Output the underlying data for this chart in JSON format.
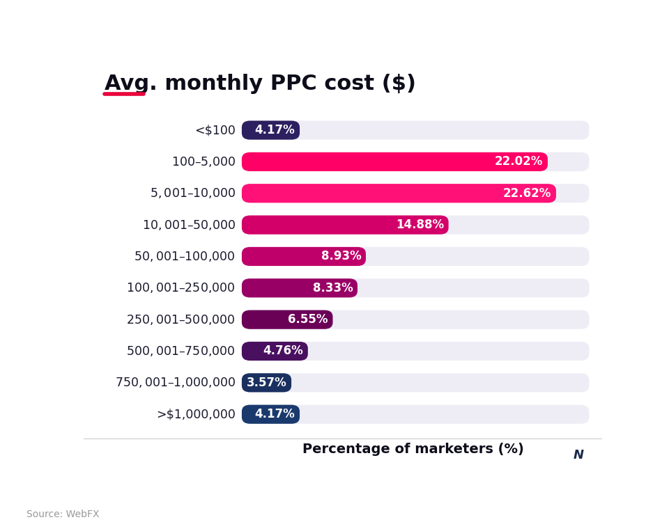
{
  "title": "Avg. monthly PPC cost ($)",
  "xlabel": "Percentage of marketers (%)",
  "source": "Source: WebFX",
  "categories": [
    "<$100",
    "$100–$5,000",
    "$5,001–$10,000",
    "$10,001–$50,000",
    "$50,001–$100,000",
    "$100,001–$250,000",
    "$250,001–$500,000",
    "$500,001–$750,000",
    "$750,001–$1,000,000",
    ">$1,000,000"
  ],
  "values": [
    4.17,
    22.02,
    22.62,
    14.88,
    8.93,
    8.33,
    6.55,
    4.76,
    3.57,
    4.17
  ],
  "bar_colors": [
    "#2d2060",
    "#ff0066",
    "#ff1177",
    "#d4006a",
    "#c0006a",
    "#990066",
    "#6b0057",
    "#4a1060",
    "#1a3060",
    "#1a3a6e"
  ],
  "bar_labels": [
    "4.17%",
    "22.02%",
    "22.62%",
    "14.88%",
    "8.93%",
    "8.33%",
    "6.55%",
    "4.76%",
    "3.57%",
    "4.17%"
  ],
  "xlim": [
    0,
    25
  ],
  "background_color": "#ffffff",
  "bar_bg_color": "#eeedf5",
  "title_fontsize": 22,
  "accent_color": "#e8003a",
  "title_underline_color": "#e8003a"
}
